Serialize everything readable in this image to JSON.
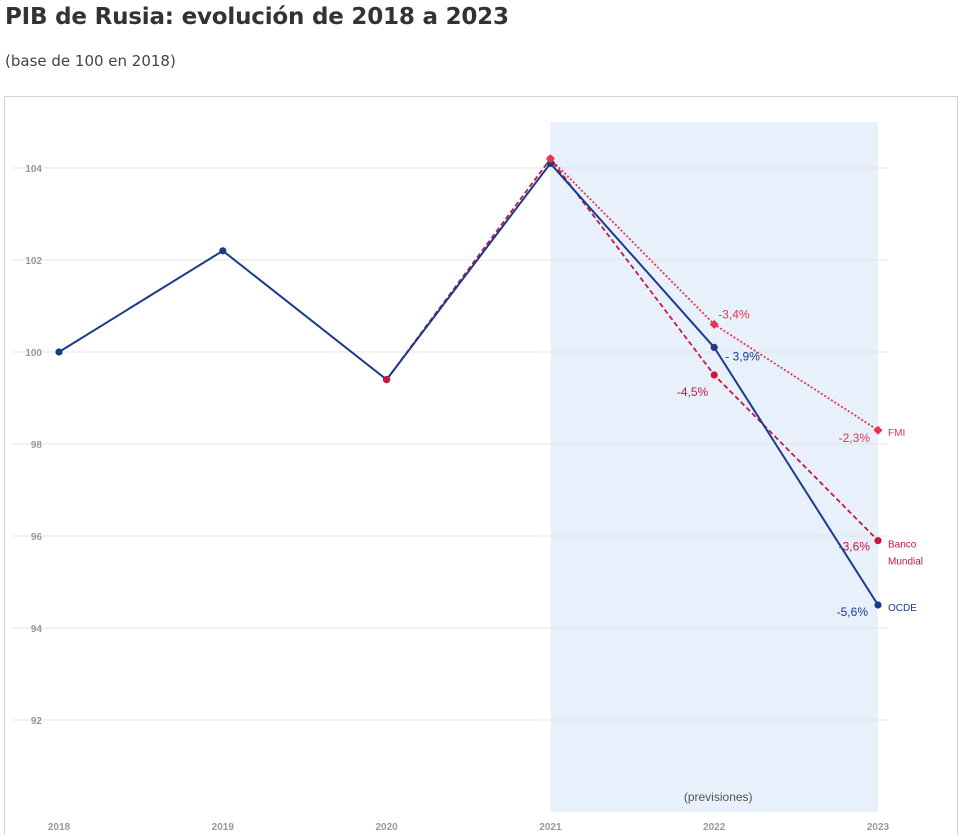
{
  "title": "PIB de Rusia: evolución de 2018 a 2023",
  "subtitle": "(base de 100 en 2018)",
  "chart_data": {
    "type": "line",
    "title": "PIB de Rusia: evolución de 2018 a 2023",
    "subtitle": "(base de 100 en 2018)",
    "xlabel": "",
    "ylabel": "",
    "x": [
      "2018",
      "2019",
      "2020",
      "2021",
      "2022",
      "2023"
    ],
    "x_range": [
      2018,
      2023
    ],
    "ylim": [
      90,
      105
    ],
    "y_ticks": [
      92,
      94,
      96,
      98,
      100,
      102,
      104
    ],
    "grid": true,
    "shaded_region": {
      "from": 2021,
      "to": 2023,
      "label": "(previsiones)",
      "color": "#e8f0fc"
    },
    "series": [
      {
        "name": "OCDE",
        "color": "#1c3a8c",
        "style": "solid",
        "marker": "circle",
        "points": [
          {
            "x": 2018,
            "y": 100
          },
          {
            "x": 2019,
            "y": 102.2
          },
          {
            "x": 2020,
            "y": 99.4
          },
          {
            "x": 2021,
            "y": 104.1
          },
          {
            "x": 2022,
            "y": 100.1,
            "label": "- 3,9%"
          },
          {
            "x": 2023,
            "y": 94.5,
            "label": "-5,6%"
          }
        ]
      },
      {
        "name": "Banco Mundial",
        "color": "#c8173e",
        "style": "dashed",
        "marker": "circle",
        "points": [
          {
            "x": 2020,
            "y": 99.4
          },
          {
            "x": 2021,
            "y": 104.2
          },
          {
            "x": 2022,
            "y": 99.5,
            "label": "-4,5%"
          },
          {
            "x": 2023,
            "y": 95.9,
            "label": "-3,6%"
          }
        ]
      },
      {
        "name": "FMI",
        "color": "#e8354f",
        "style": "dotted",
        "marker": "diamond",
        "points": [
          {
            "x": 2021,
            "y": 104.2
          },
          {
            "x": 2022,
            "y": 100.6,
            "label": "-3,4%"
          },
          {
            "x": 2023,
            "y": 98.3,
            "label": "-2,3%"
          }
        ]
      }
    ]
  }
}
